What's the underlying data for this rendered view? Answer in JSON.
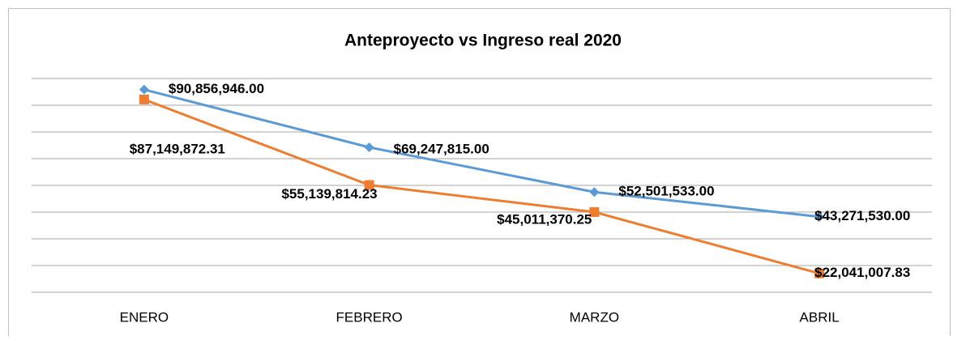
{
  "chart_data": {
    "type": "line",
    "title": "Anteproyecto vs Ingreso real 2020",
    "categories": [
      "ENERO",
      "FEBRERO",
      "MARZO",
      "ABRIL"
    ],
    "series": [
      {
        "color": "#5b9bd5",
        "marker": "diamond",
        "values": [
          90856946.0,
          69247815.0,
          52501533.0,
          43271530.0
        ],
        "value_labels": [
          "$90,856,946.00",
          "$69,247,815.00",
          "$52,501,533.00",
          "$43,271,530.00"
        ]
      },
      {
        "color": "#ed7d31",
        "marker": "square",
        "values": [
          87149872.31,
          55139814.23,
          45011370.25,
          22041007.83
        ],
        "value_labels": [
          "$87,149,872.31",
          "$55,139,814.23",
          "$45,011,370.25",
          "$22,041,007.83"
        ]
      }
    ],
    "ylim": [
      15000000,
      95000000
    ],
    "yticks": [
      15000000,
      25000000,
      35000000,
      45000000,
      55000000,
      65000000,
      75000000,
      85000000,
      95000000
    ],
    "grid": true
  }
}
